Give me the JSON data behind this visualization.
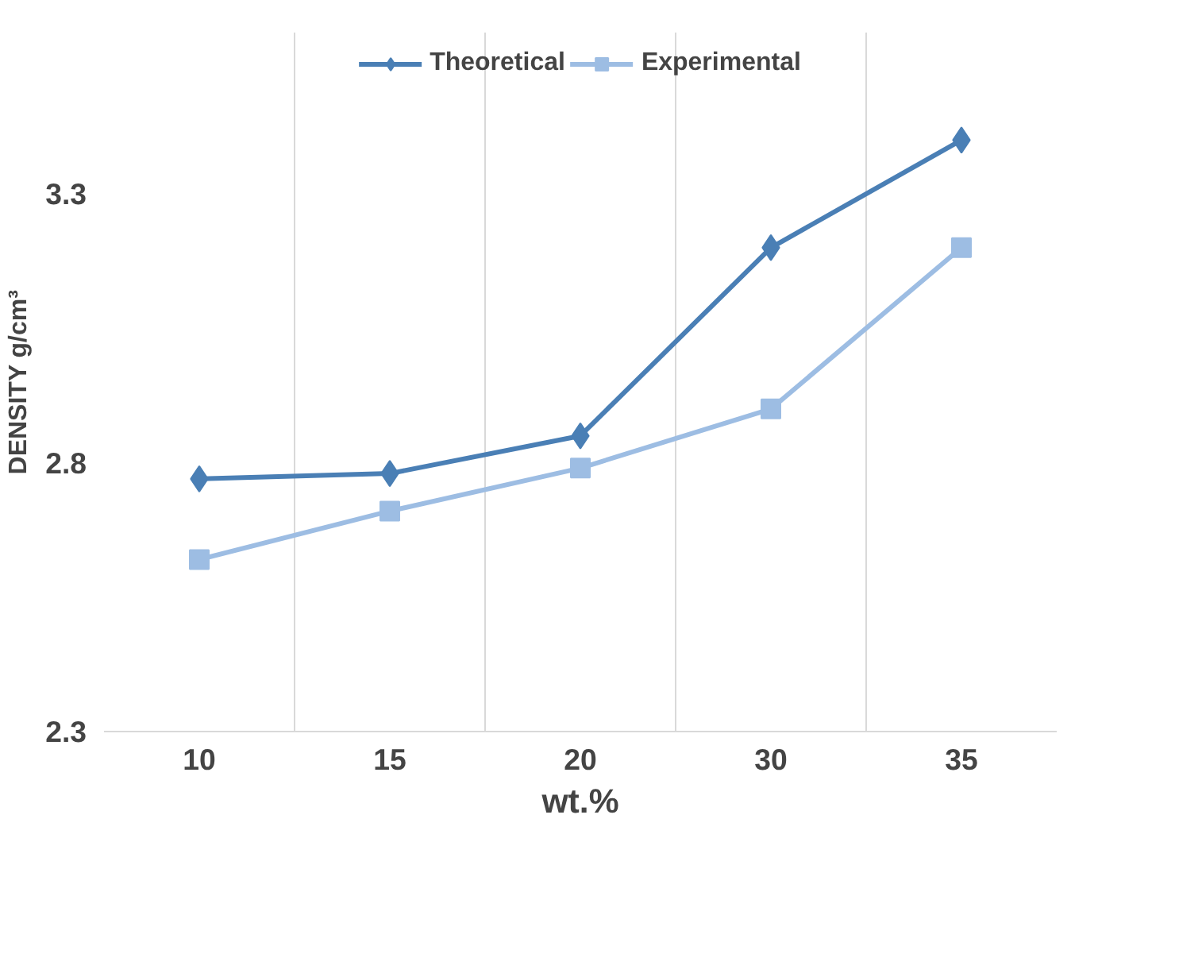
{
  "chart_data": {
    "type": "line",
    "xlabel": "wt.%",
    "ylabel": "DENSITY g/cm³",
    "categories": [
      "10",
      "15",
      "20",
      "30",
      "35"
    ],
    "series": [
      {
        "name": "Theoretical",
        "color": "#4a7fb5",
        "marker": "diamond",
        "values": [
          2.77,
          2.78,
          2.85,
          3.2,
          3.4
        ]
      },
      {
        "name": "Experimental",
        "color": "#9dbde3",
        "marker": "square",
        "values": [
          2.62,
          2.71,
          2.79,
          2.9,
          3.2
        ]
      }
    ],
    "ylim": [
      2.3,
      3.6
    ],
    "yticks": [
      2.3,
      2.8,
      3.3
    ],
    "grid": "x",
    "legend": "top",
    "line_style": "solid"
  }
}
